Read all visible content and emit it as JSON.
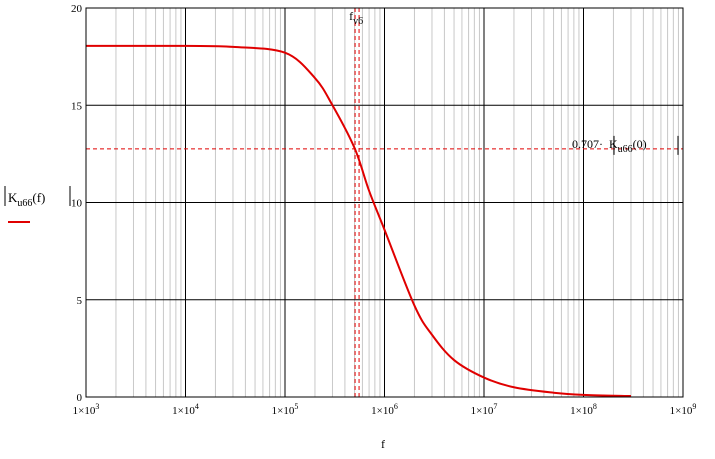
{
  "chart_data": {
    "type": "line",
    "x_scale": "log",
    "xlim": [
      1000,
      1000000000
    ],
    "ylim": [
      0,
      20
    ],
    "x_ticks": [
      {
        "value": 1000,
        "mantissa": "1×10",
        "exp": "3"
      },
      {
        "value": 10000,
        "mantissa": "1×10",
        "exp": "4"
      },
      {
        "value": 100000,
        "mantissa": "1×10",
        "exp": "5"
      },
      {
        "value": 1000000,
        "mantissa": "1×10",
        "exp": "6"
      },
      {
        "value": 10000000,
        "mantissa": "1×10",
        "exp": "7"
      },
      {
        "value": 100000000,
        "mantissa": "1×10",
        "exp": "8"
      },
      {
        "value": 1000000000,
        "mantissa": "1×10",
        "exp": "9"
      }
    ],
    "y_ticks": [
      0,
      5,
      10,
      15,
      20
    ],
    "xlabel": "f",
    "ylabel": {
      "base": "K",
      "sub": "u66",
      "arg": "(f)"
    },
    "grid": true,
    "series": [
      {
        "color": "#e00000",
        "points": [
          [
            1000,
            18.05
          ],
          [
            10000,
            18.05
          ],
          [
            30000,
            18.0
          ],
          [
            100000,
            17.7
          ],
          [
            200000,
            16.4
          ],
          [
            300000,
            15.0
          ],
          [
            500000,
            12.8
          ],
          [
            700000,
            10.6
          ],
          [
            1000000,
            8.6
          ],
          [
            2000000,
            4.7
          ],
          [
            3000000,
            3.2
          ],
          [
            5000000,
            1.9
          ],
          [
            10000000,
            1.0
          ],
          [
            20000000,
            0.5
          ],
          [
            50000000,
            0.22
          ],
          [
            100000000,
            0.11
          ],
          [
            300000000,
            0.05
          ]
        ]
      }
    ],
    "h_marker": {
      "y": 12.76,
      "color": "#e00000",
      "label_prefix": "0.707·",
      "label_base": "K",
      "label_sub": "u66",
      "label_arg": "(0)"
    },
    "v_marker": {
      "x": 530000,
      "color": "#e00000",
      "label_base": "f",
      "label_sub": "v6"
    }
  }
}
